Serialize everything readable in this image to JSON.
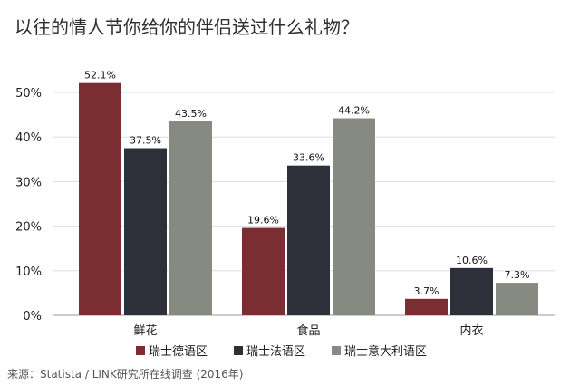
{
  "page": {
    "title": "以往的情人节你给你的伴侣送过什么礼物？",
    "source": "来源：Statista / LINK研究所在线调查 (2016年)"
  },
  "chart_data": {
    "type": "bar",
    "title": "以往的情人节你给你的伴侣送过什么礼物？",
    "xlabel": "",
    "ylabel": "",
    "categories": [
      "鲜花",
      "食品",
      "内衣"
    ],
    "series": [
      {
        "name": "瑞士德语区",
        "color": "#7a2e31",
        "values": [
          52.1,
          19.6,
          3.7
        ]
      },
      {
        "name": "瑞士法语区",
        "color": "#2d3038",
        "values": [
          37.5,
          33.6,
          10.6
        ]
      },
      {
        "name": "瑞士意大利语区",
        "color": "#868a80",
        "values": [
          43.5,
          44.2,
          7.3
        ]
      }
    ],
    "ylim": [
      0,
      50
    ],
    "yticks": [
      0,
      10,
      20,
      30,
      40,
      50
    ],
    "ytick_labels": [
      "0%",
      "10%",
      "20%",
      "30%",
      "40%",
      "50%"
    ],
    "value_labels": [
      [
        "52.1%",
        "19.6%",
        "3.7%"
      ],
      [
        "37.5%",
        "33.6%",
        "10.6%"
      ],
      [
        "43.5%",
        "44.2%",
        "7.3%"
      ]
    ],
    "grid": true,
    "legend_position": "bottom"
  }
}
